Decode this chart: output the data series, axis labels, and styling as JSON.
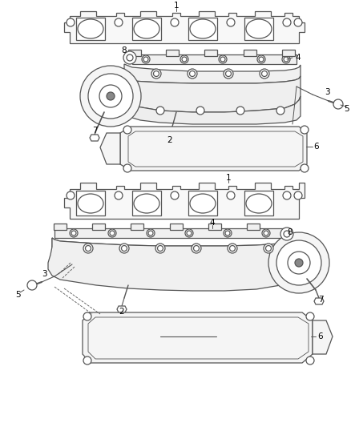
{
  "bg_color": "#ffffff",
  "line_color": "#555555",
  "fig_width": 4.38,
  "fig_height": 5.33,
  "dpi": 100
}
